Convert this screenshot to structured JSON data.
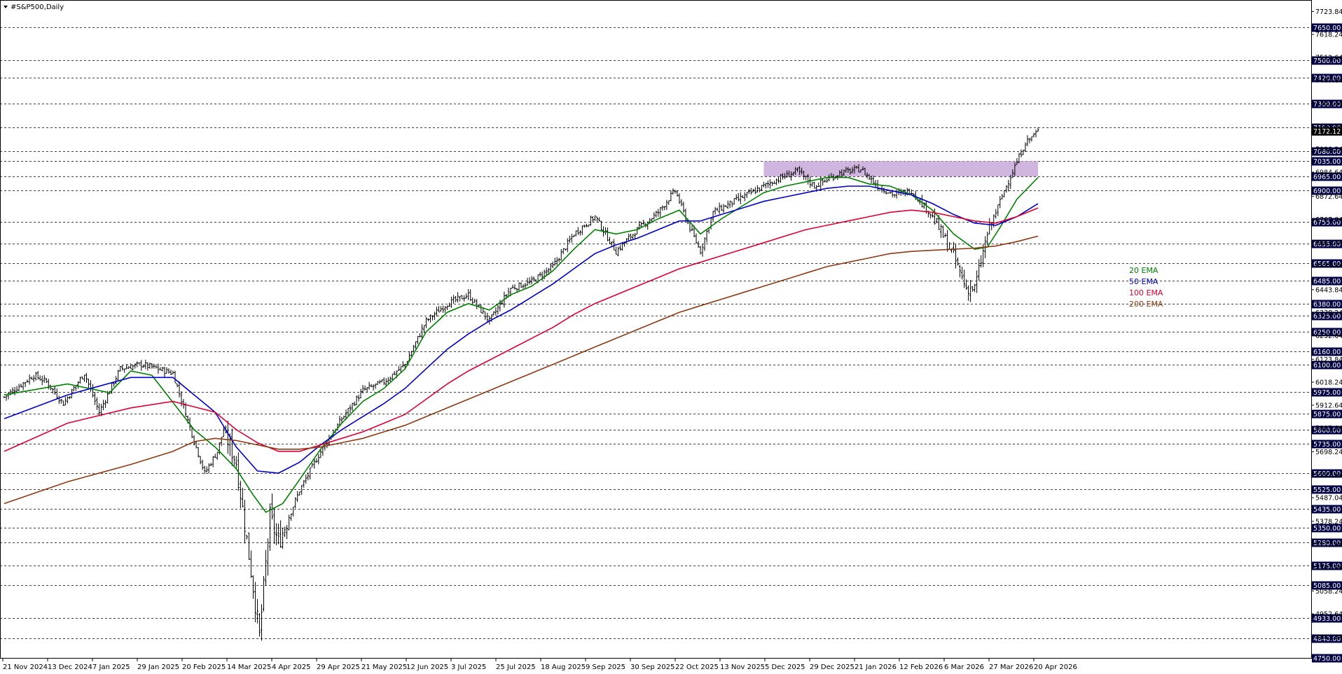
{
  "header": {
    "symbol": "#S&P500,Daily"
  },
  "chart_data": {
    "type": "line",
    "title": "#S&P500,Daily",
    "ylim": [
      4750,
      7770
    ],
    "y_ticks": [
      7723.84,
      7618.24,
      7512.64,
      7407.04,
      7301.44,
      7195.84,
      7090.24,
      6984.64,
      6872.64,
      6767.04,
      6661.44,
      6555.84,
      6443.84,
      6338.24,
      6232.64,
      6123.84,
      6018.24,
      5912.64,
      5807.04,
      5698.24,
      5592.64,
      5487.04,
      5378.24,
      5272.64,
      5167.04,
      5058.24,
      4952.64,
      4847.04
    ],
    "levels": [
      7650,
      7500,
      7420,
      7300,
      7190,
      7080,
      7035,
      6965,
      6900,
      6755,
      6655,
      6565,
      6485,
      6380,
      6325,
      6250,
      6160,
      6100,
      5975,
      5875,
      5800,
      5735,
      5600,
      5525,
      5435,
      5350,
      5280,
      5175,
      5085,
      4933,
      4840,
      4750
    ],
    "current_price": 7172.12,
    "x_labels": [
      "21 Nov 2024",
      "13 Dec 2024",
      "7 Jan 2025",
      "29 Jan 2025",
      "20 Feb 2025",
      "14 Mar 2025",
      "4 Apr 2025",
      "29 Apr 2025",
      "21 May 2025",
      "12 Jun 2025",
      "3 Jul 2025",
      "25 Jul 2025",
      "18 Aug 2025",
      "9 Sep 2025",
      "30 Sep 2025",
      "22 Oct 2025",
      "13 Nov 2025",
      "5 Dec 2025",
      "29 Dec 2025",
      "21 Jan 2026",
      "12 Feb 2026",
      "6 Mar 2026",
      "27 Mar 2026",
      "20 Apr 2026"
    ],
    "close_path": [
      [
        0,
        5950
      ],
      [
        14,
        6050
      ],
      [
        20,
        6020
      ],
      [
        28,
        5920
      ],
      [
        38,
        6060
      ],
      [
        45,
        5880
      ],
      [
        55,
        6080
      ],
      [
        65,
        6100
      ],
      [
        80,
        6060
      ],
      [
        90,
        5750
      ],
      [
        95,
        5600
      ],
      [
        101,
        5700
      ],
      [
        104,
        5800
      ],
      [
        110,
        5650
      ],
      [
        117,
        5150
      ],
      [
        121,
        4850
      ],
      [
        126,
        5400
      ],
      [
        130,
        5280
      ],
      [
        140,
        5520
      ],
      [
        150,
        5700
      ],
      [
        160,
        5850
      ],
      [
        170,
        5980
      ],
      [
        180,
        6020
      ],
      [
        190,
        6100
      ],
      [
        200,
        6300
      ],
      [
        210,
        6380
      ],
      [
        220,
        6420
      ],
      [
        230,
        6300
      ],
      [
        240,
        6450
      ],
      [
        250,
        6480
      ],
      [
        260,
        6550
      ],
      [
        270,
        6700
      ],
      [
        280,
        6780
      ],
      [
        290,
        6620
      ],
      [
        300,
        6720
      ],
      [
        310,
        6800
      ],
      [
        318,
        6900
      ],
      [
        324,
        6750
      ],
      [
        330,
        6620
      ],
      [
        336,
        6800
      ],
      [
        346,
        6850
      ],
      [
        356,
        6900
      ],
      [
        366,
        6950
      ],
      [
        376,
        6990
      ],
      [
        384,
        6920
      ],
      [
        396,
        6980
      ],
      [
        406,
        7000
      ],
      [
        414,
        6920
      ],
      [
        422,
        6880
      ],
      [
        430,
        6900
      ],
      [
        440,
        6780
      ],
      [
        450,
        6600
      ],
      [
        456,
        6450
      ],
      [
        460,
        6450
      ],
      [
        466,
        6700
      ],
      [
        474,
        6900
      ],
      [
        484,
        7120
      ],
      [
        490,
        7172.12
      ]
    ],
    "shaded_zone": {
      "x_start": 360,
      "x_end": 490,
      "y_low": 6965,
      "y_high": 7035
    },
    "series": [
      {
        "name": "20 EMA",
        "color": "#008000",
        "points": [
          [
            0,
            5960
          ],
          [
            30,
            6010
          ],
          [
            50,
            5970
          ],
          [
            60,
            6070
          ],
          [
            70,
            6050
          ],
          [
            90,
            5800
          ],
          [
            100,
            5720
          ],
          [
            110,
            5620
          ],
          [
            118,
            5500
          ],
          [
            124,
            5420
          ],
          [
            132,
            5460
          ],
          [
            140,
            5570
          ],
          [
            150,
            5710
          ],
          [
            160,
            5830
          ],
          [
            170,
            5930
          ],
          [
            180,
            5990
          ],
          [
            190,
            6080
          ],
          [
            200,
            6250
          ],
          [
            210,
            6340
          ],
          [
            220,
            6380
          ],
          [
            230,
            6350
          ],
          [
            240,
            6420
          ],
          [
            250,
            6460
          ],
          [
            260,
            6530
          ],
          [
            270,
            6630
          ],
          [
            280,
            6720
          ],
          [
            290,
            6700
          ],
          [
            300,
            6720
          ],
          [
            310,
            6770
          ],
          [
            320,
            6810
          ],
          [
            330,
            6700
          ],
          [
            340,
            6770
          ],
          [
            350,
            6830
          ],
          [
            360,
            6890
          ],
          [
            370,
            6920
          ],
          [
            380,
            6940
          ],
          [
            390,
            6960
          ],
          [
            400,
            6960
          ],
          [
            410,
            6930
          ],
          [
            420,
            6920
          ],
          [
            430,
            6880
          ],
          [
            440,
            6810
          ],
          [
            450,
            6700
          ],
          [
            460,
            6630
          ],
          [
            466,
            6640
          ],
          [
            472,
            6730
          ],
          [
            480,
            6860
          ],
          [
            490,
            6960
          ]
        ]
      },
      {
        "name": "50 EMA",
        "color": "#0000cc",
        "points": [
          [
            0,
            5850
          ],
          [
            30,
            5960
          ],
          [
            60,
            6040
          ],
          [
            80,
            6040
          ],
          [
            100,
            5880
          ],
          [
            110,
            5720
          ],
          [
            120,
            5610
          ],
          [
            130,
            5600
          ],
          [
            140,
            5650
          ],
          [
            150,
            5730
          ],
          [
            160,
            5800
          ],
          [
            170,
            5860
          ],
          [
            180,
            5920
          ],
          [
            190,
            5990
          ],
          [
            200,
            6080
          ],
          [
            210,
            6170
          ],
          [
            220,
            6240
          ],
          [
            230,
            6300
          ],
          [
            240,
            6350
          ],
          [
            250,
            6410
          ],
          [
            260,
            6470
          ],
          [
            270,
            6540
          ],
          [
            280,
            6610
          ],
          [
            290,
            6650
          ],
          [
            300,
            6680
          ],
          [
            310,
            6720
          ],
          [
            320,
            6760
          ],
          [
            330,
            6760
          ],
          [
            340,
            6790
          ],
          [
            350,
            6820
          ],
          [
            360,
            6850
          ],
          [
            370,
            6870
          ],
          [
            380,
            6890
          ],
          [
            390,
            6910
          ],
          [
            400,
            6920
          ],
          [
            410,
            6920
          ],
          [
            420,
            6900
          ],
          [
            430,
            6880
          ],
          [
            440,
            6840
          ],
          [
            450,
            6790
          ],
          [
            460,
            6750
          ],
          [
            470,
            6740
          ],
          [
            480,
            6780
          ],
          [
            490,
            6840
          ]
        ]
      },
      {
        "name": "100 EMA",
        "color": "#dd0033",
        "points": [
          [
            0,
            5700
          ],
          [
            30,
            5830
          ],
          [
            60,
            5900
          ],
          [
            80,
            5930
          ],
          [
            100,
            5880
          ],
          [
            110,
            5800
          ],
          [
            120,
            5740
          ],
          [
            130,
            5700
          ],
          [
            140,
            5700
          ],
          [
            150,
            5730
          ],
          [
            160,
            5760
          ],
          [
            170,
            5790
          ],
          [
            180,
            5830
          ],
          [
            190,
            5870
          ],
          [
            200,
            5940
          ],
          [
            210,
            6010
          ],
          [
            220,
            6070
          ],
          [
            230,
            6120
          ],
          [
            240,
            6170
          ],
          [
            250,
            6220
          ],
          [
            260,
            6270
          ],
          [
            270,
            6330
          ],
          [
            280,
            6380
          ],
          [
            290,
            6420
          ],
          [
            300,
            6460
          ],
          [
            310,
            6500
          ],
          [
            320,
            6540
          ],
          [
            330,
            6570
          ],
          [
            340,
            6600
          ],
          [
            350,
            6630
          ],
          [
            360,
            6660
          ],
          [
            370,
            6690
          ],
          [
            380,
            6720
          ],
          [
            390,
            6740
          ],
          [
            400,
            6760
          ],
          [
            410,
            6780
          ],
          [
            420,
            6800
          ],
          [
            430,
            6810
          ],
          [
            440,
            6800
          ],
          [
            450,
            6780
          ],
          [
            460,
            6760
          ],
          [
            470,
            6750
          ],
          [
            480,
            6780
          ],
          [
            490,
            6820
          ]
        ]
      },
      {
        "name": "200 EMA",
        "color": "#8b3a14",
        "points": [
          [
            0,
            5460
          ],
          [
            30,
            5560
          ],
          [
            60,
            5640
          ],
          [
            80,
            5700
          ],
          [
            90,
            5745
          ],
          [
            100,
            5760
          ],
          [
            110,
            5750
          ],
          [
            120,
            5730
          ],
          [
            130,
            5710
          ],
          [
            140,
            5710
          ],
          [
            150,
            5720
          ],
          [
            160,
            5740
          ],
          [
            170,
            5760
          ],
          [
            180,
            5790
          ],
          [
            190,
            5820
          ],
          [
            200,
            5860
          ],
          [
            210,
            5900
          ],
          [
            220,
            5940
          ],
          [
            230,
            5980
          ],
          [
            240,
            6020
          ],
          [
            250,
            6060
          ],
          [
            260,
            6100
          ],
          [
            270,
            6140
          ],
          [
            280,
            6180
          ],
          [
            290,
            6220
          ],
          [
            300,
            6260
          ],
          [
            310,
            6300
          ],
          [
            320,
            6340
          ],
          [
            330,
            6370
          ],
          [
            340,
            6400
          ],
          [
            350,
            6430
          ],
          [
            360,
            6460
          ],
          [
            370,
            6490
          ],
          [
            380,
            6520
          ],
          [
            390,
            6550
          ],
          [
            400,
            6570
          ],
          [
            410,
            6590
          ],
          [
            420,
            6610
          ],
          [
            430,
            6620
          ],
          [
            440,
            6625
          ],
          [
            450,
            6630
          ],
          [
            460,
            6635
          ],
          [
            470,
            6645
          ],
          [
            480,
            6665
          ],
          [
            490,
            6690
          ]
        ]
      }
    ],
    "legend": [
      "20 EMA",
      "50 EMA",
      "100 EMA",
      "200 EMA"
    ],
    "grid": true
  }
}
